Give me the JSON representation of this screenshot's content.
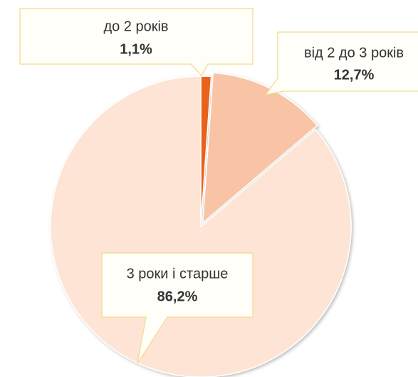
{
  "chart_data": {
    "type": "pie",
    "categories": [
      "до 2 років",
      "від 2 до 3 років",
      "3 роки і старше"
    ],
    "values": [
      1.1,
      12.7,
      86.2
    ],
    "value_labels": [
      "1,1%",
      "12,7%",
      "86,2%"
    ],
    "colors": [
      "#e8621e",
      "#f9c4a6",
      "#fde4d4"
    ]
  }
}
